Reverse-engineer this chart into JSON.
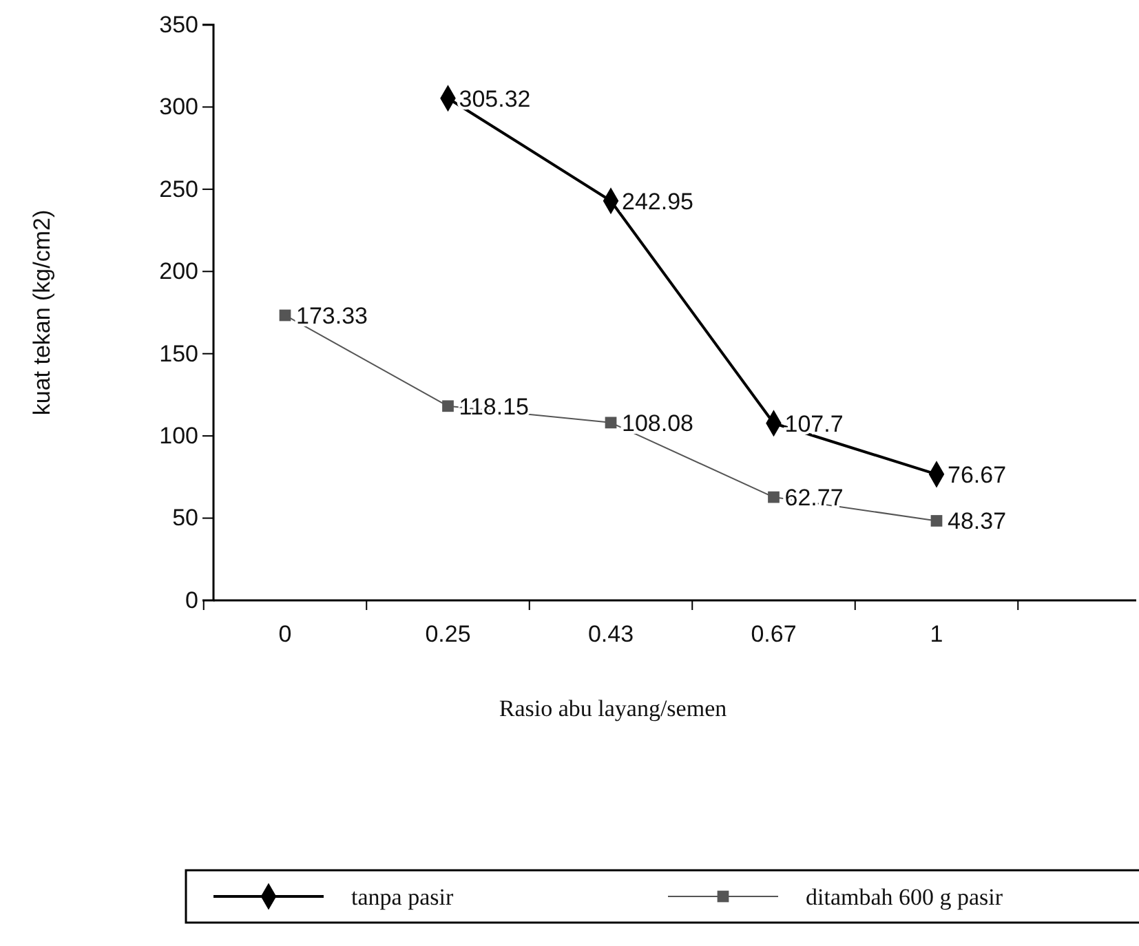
{
  "chart_data": {
    "type": "line",
    "xlabel": "Rasio abu layang/semen",
    "ylabel": "kuat tekan (kg/cm2)",
    "categories": [
      "0",
      "0.25",
      "0.43",
      "0.67",
      "1"
    ],
    "series": [
      {
        "name": "tanpa pasir",
        "color": "#000000",
        "marker": "diamond",
        "values": [
          null,
          305.32,
          242.95,
          107.7,
          76.67
        ]
      },
      {
        "name": "ditambah 600 g pasir",
        "color": "#555555",
        "marker": "square",
        "values": [
          173.33,
          118.15,
          108.08,
          62.77,
          48.37
        ]
      }
    ],
    "ylim": [
      0,
      350
    ],
    "yticks": [
      0,
      50,
      100,
      150,
      200,
      250,
      300,
      350
    ],
    "data_labels": true,
    "legend": "bottom",
    "grid": false,
    "line_style": "solid"
  }
}
